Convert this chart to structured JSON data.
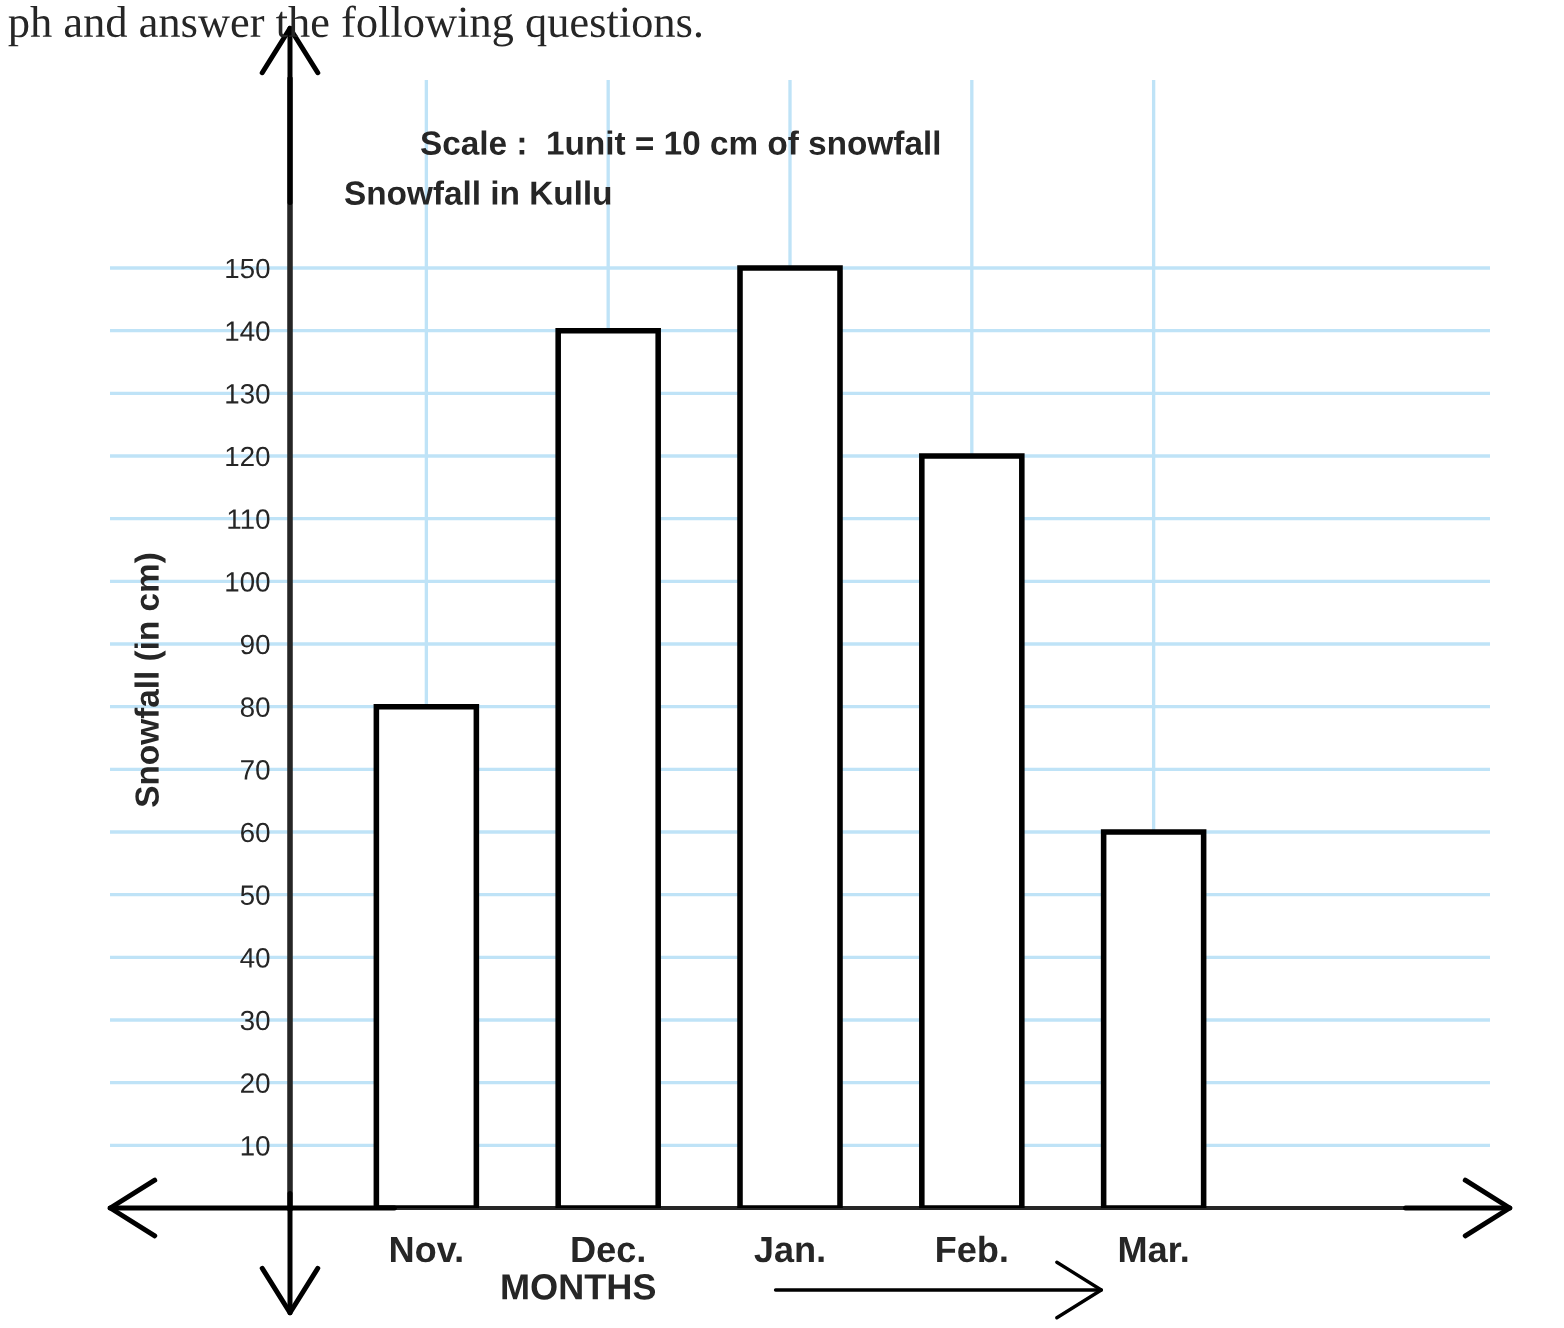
{
  "chart_data": {
    "type": "bar",
    "title": "Snowfall in Kullu",
    "xlabel": "MONTHS",
    "ylabel": "Snowfall (in cm)",
    "annotations": [
      "ph and answer the following questions.",
      "Scale :  1unit = 10 cm of snowfall"
    ],
    "categories": [
      "Nov.",
      "Dec.",
      "Jan.",
      "Feb.",
      "Mar."
    ],
    "values": [
      80,
      140,
      150,
      120,
      60
    ],
    "color": "#ffffff",
    "ylim": [
      0,
      180
    ],
    "yticks": [
      10,
      20,
      30,
      40,
      50,
      60,
      70,
      80,
      90,
      100,
      110,
      120,
      130,
      140,
      150
    ],
    "grid": true,
    "legend": false
  }
}
